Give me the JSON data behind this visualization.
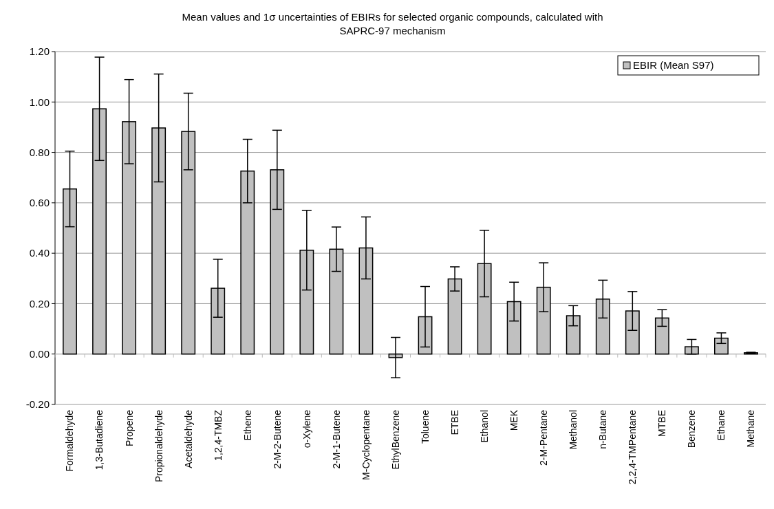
{
  "chart_data": {
    "type": "bar",
    "title": "Mean values and 1σ uncertainties of EBIRs for selected organic compounds, calculated with SAPRC-97 mechanism",
    "categories": [
      "Formaldehyde",
      "1,3-Butadiene",
      "Propene",
      "Propionaldehyde",
      "Acetaldehyde",
      "1,2,4-TMBZ",
      "Ethene",
      "2-M-2-Butene",
      "o-Xylene",
      "2-M-1-Butene",
      "M-Cyclopentane",
      "EthylBenzene",
      "Toluene",
      "ETBE",
      "Ethanol",
      "MEK",
      "2-M-Pentane",
      "Methanol",
      "n-Butane",
      "2,2,4-TMPentane",
      "MTBE",
      "Benzene",
      "Ethane",
      "Methane"
    ],
    "series": [
      {
        "name": "EBIR (Mean S97)",
        "color": "#c0c0c0",
        "values": [
          0.655,
          0.973,
          0.922,
          0.897,
          0.883,
          0.261,
          0.726,
          0.731,
          0.412,
          0.416,
          0.421,
          -0.014,
          0.148,
          0.298,
          0.359,
          0.208,
          0.265,
          0.152,
          0.218,
          0.171,
          0.143,
          0.029,
          0.063,
          0.005
        ],
        "errors": [
          0.15,
          0.205,
          0.167,
          0.214,
          0.152,
          0.115,
          0.126,
          0.157,
          0.158,
          0.088,
          0.123,
          0.08,
          0.12,
          0.048,
          0.132,
          0.077,
          0.097,
          0.04,
          0.075,
          0.077,
          0.033,
          0.029,
          0.021,
          0.002
        ]
      }
    ],
    "ylim": [
      -0.2,
      1.2
    ],
    "yticks": [
      {
        "value": -0.2,
        "label": "-0.20"
      },
      {
        "value": 0,
        "label": "0.00"
      },
      {
        "value": 0.2,
        "label": "0.20"
      },
      {
        "value": 0.4,
        "label": "0.40"
      },
      {
        "value": 0.6,
        "label": "0.60"
      },
      {
        "value": 0.8,
        "label": "0.80"
      },
      {
        "value": 1,
        "label": "1.00"
      },
      {
        "value": 1.2,
        "label": "1.20"
      }
    ],
    "grid": "y",
    "legend": "top right"
  }
}
